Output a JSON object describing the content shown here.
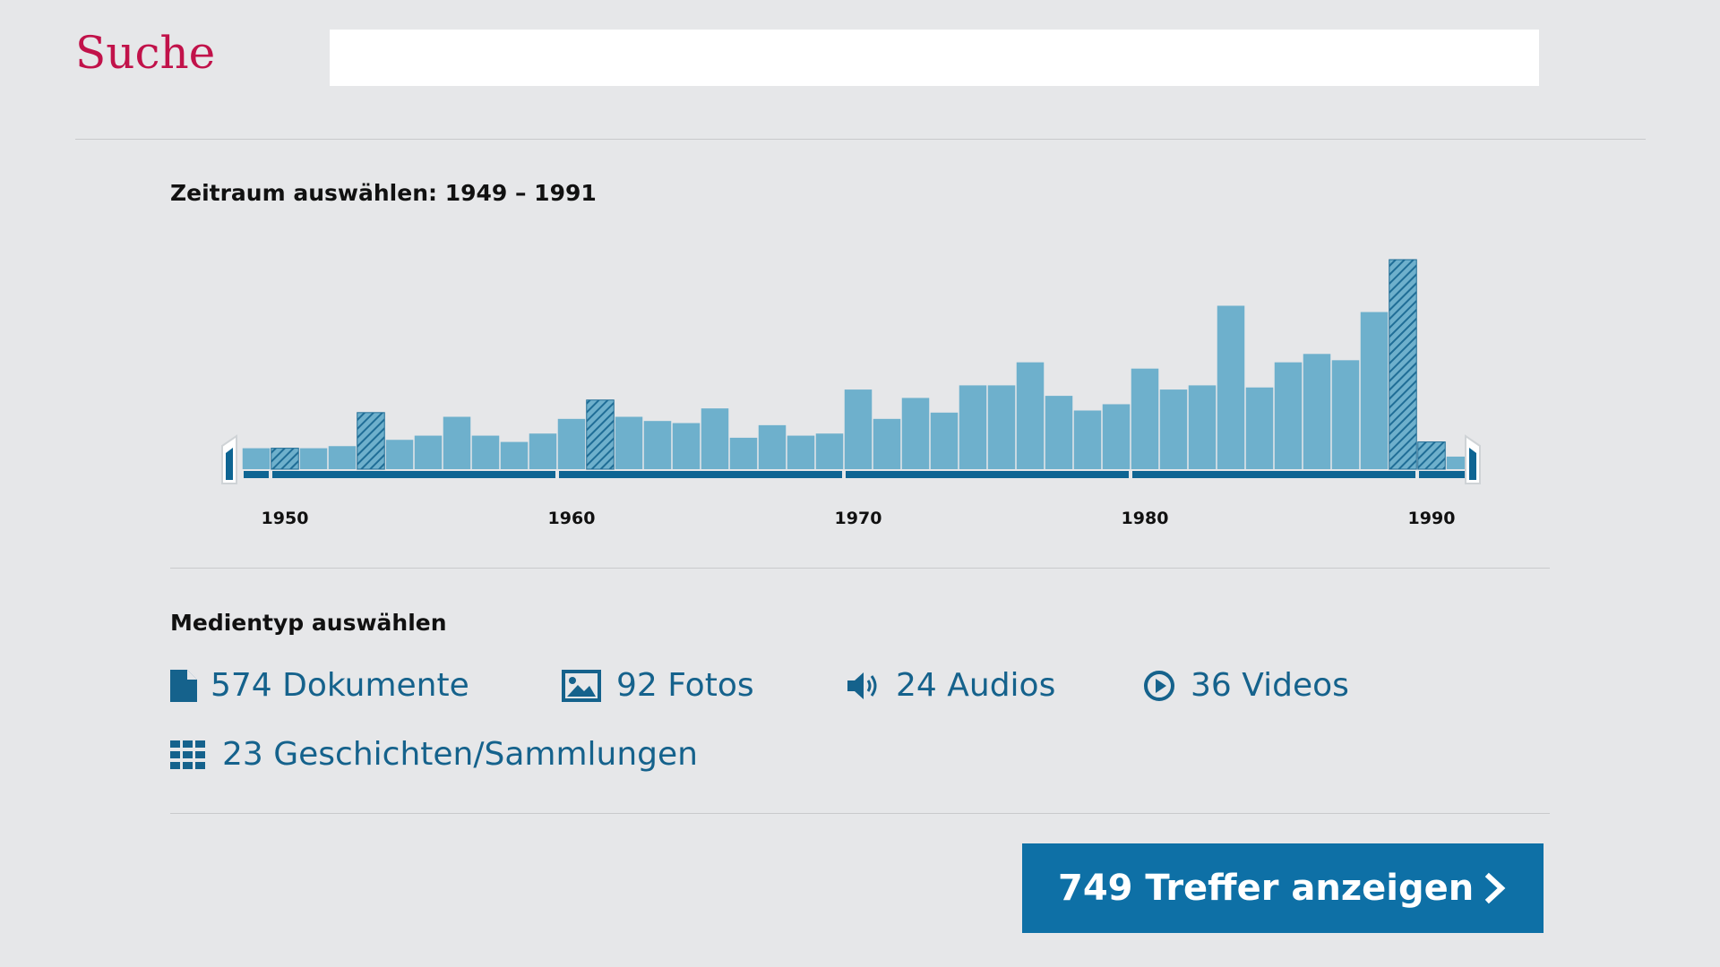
{
  "header": {
    "title": "Suche",
    "search_value": "",
    "search_placeholder": ""
  },
  "timeframe": {
    "label": "Zeitraum auswählen: 1949 – 1991"
  },
  "chart_data": {
    "type": "bar",
    "title": "",
    "xlabel": "",
    "ylabel": "",
    "x": [
      1949,
      1950,
      1951,
      1952,
      1953,
      1954,
      1955,
      1956,
      1957,
      1958,
      1959,
      1960,
      1961,
      1962,
      1963,
      1964,
      1965,
      1966,
      1967,
      1968,
      1969,
      1970,
      1971,
      1972,
      1973,
      1974,
      1975,
      1976,
      1977,
      1978,
      1979,
      1980,
      1981,
      1982,
      1983,
      1984,
      1985,
      1986,
      1987,
      1988,
      1989,
      1990,
      1991
    ],
    "values": [
      10,
      10,
      10,
      11,
      27,
      14,
      16,
      25,
      16,
      13,
      17,
      24,
      33,
      25,
      23,
      22,
      29,
      15,
      21,
      16,
      17,
      38,
      24,
      34,
      27,
      40,
      40,
      51,
      35,
      28,
      31,
      48,
      38,
      40,
      78,
      39,
      51,
      55,
      52,
      75,
      100,
      13,
      6
    ],
    "hatched_years": [
      1950,
      1953,
      1961,
      1989,
      1990
    ],
    "tick_labels": [
      "1950",
      "1960",
      "1970",
      "1980",
      "1990"
    ],
    "ylim": [
      0,
      100
    ],
    "xlim": [
      1949,
      1991
    ],
    "selected_range": [
      1949,
      1991
    ],
    "grid": false,
    "colors": {
      "bar": "#6eb0cc",
      "hatch": "#1f6d96",
      "axis": "#0e6593",
      "handle": "#0e6593"
    }
  },
  "media": {
    "label": "Medientyp auswählen",
    "items": [
      {
        "icon": "document-icon",
        "label": "574 Dokumente"
      },
      {
        "icon": "image-icon",
        "label": "92 Fotos"
      },
      {
        "icon": "speaker-icon",
        "label": "24 Audios"
      },
      {
        "icon": "play-circle-icon",
        "label": "36 Videos"
      },
      {
        "icon": "grid-icon",
        "label": "23 Geschichten/Sammlungen"
      }
    ]
  },
  "cta": {
    "label": "749 Treffer anzeigen",
    "icon": "chevron-right-icon"
  },
  "theme": {
    "accent": "#c1124a",
    "primary": "#0e70a6",
    "link": "#15628c",
    "background": "#e6e7e9"
  }
}
